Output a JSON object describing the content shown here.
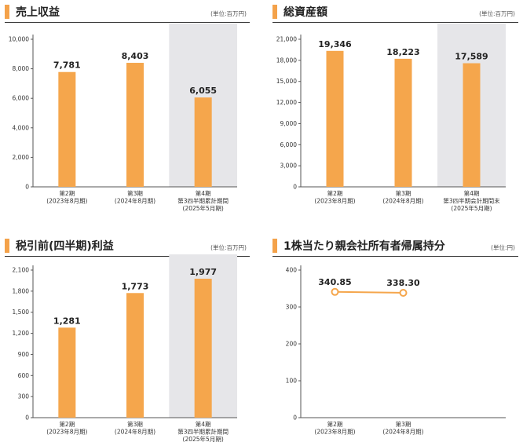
{
  "charts": [
    {
      "title": "売上収益",
      "unit": "(単位:百万円)",
      "chart_data": {
        "type": "bar",
        "categories": [
          [
            "第2期",
            "(2023年8月期)"
          ],
          [
            "第3期",
            "(2024年8月期)"
          ],
          [
            "第4期",
            "第3四半期累計期間",
            "(2025年5月期)"
          ]
        ],
        "values": [
          7781,
          8403,
          6055
        ],
        "value_labels": [
          "7,781",
          "8,403",
          "6,055"
        ],
        "yticks": [
          0,
          2000,
          4000,
          6000,
          8000,
          10000
        ],
        "ytick_labels": [
          "0",
          "2,000",
          "4,000",
          "6,000",
          "8,000",
          "10,000"
        ],
        "ylim": [
          0,
          10000
        ],
        "highlight_index": 2
      }
    },
    {
      "title": "総資産額",
      "unit": "(単位:百万円)",
      "chart_data": {
        "type": "bar",
        "categories": [
          [
            "第2期",
            "(2023年8月期)"
          ],
          [
            "第3期",
            "(2024年8月期)"
          ],
          [
            "第4期",
            "第3四半期会計期間末",
            "(2025年5月期)"
          ]
        ],
        "values": [
          19346,
          18223,
          17589
        ],
        "value_labels": [
          "19,346",
          "18,223",
          "17,589"
        ],
        "yticks": [
          0,
          3000,
          6000,
          9000,
          12000,
          15000,
          18000,
          21000
        ],
        "ytick_labels": [
          "0",
          "3,000",
          "6,000",
          "9,000",
          "12,000",
          "15,000",
          "18,000",
          "21,000"
        ],
        "ylim": [
          0,
          21000
        ],
        "highlight_index": 2
      }
    },
    {
      "title": "税引前(四半期)利益",
      "unit": "(単位:百万円)",
      "chart_data": {
        "type": "bar",
        "categories": [
          [
            "第2期",
            "(2023年8月期)"
          ],
          [
            "第3期",
            "(2024年8月期)"
          ],
          [
            "第4期",
            "第3四半期累計期間",
            "(2025年5月期)"
          ]
        ],
        "values": [
          1281,
          1773,
          1977
        ],
        "value_labels": [
          "1,281",
          "1,773",
          "1,977"
        ],
        "yticks": [
          0,
          300,
          600,
          900,
          1200,
          1500,
          1800,
          2100
        ],
        "ytick_labels": [
          "0",
          "300",
          "600",
          "900",
          "1,200",
          "1,500",
          "1,800",
          "2,100"
        ],
        "ylim": [
          0,
          2100
        ],
        "highlight_index": 2
      }
    },
    {
      "title": "1株当たり親会社所有者帰属持分",
      "unit": "(単位:円)",
      "chart_data": {
        "type": "line",
        "categories": [
          [
            "第2期",
            "(2023年8月期)"
          ],
          [
            "第3期",
            "(2024年8月期)"
          ]
        ],
        "values": [
          340.85,
          338.3
        ],
        "value_labels": [
          "340.85",
          "338.30"
        ],
        "yticks": [
          0,
          100,
          200,
          300,
          400
        ],
        "ytick_labels": [
          "0",
          "100",
          "200",
          "300",
          "400"
        ],
        "ylim": [
          0,
          400
        ],
        "highlight_index": -1
      }
    }
  ],
  "colors": {
    "bar": "#f5a64c",
    "highlight_bg": "#e6e6e9",
    "axis": "#555555",
    "text": "#333333"
  }
}
